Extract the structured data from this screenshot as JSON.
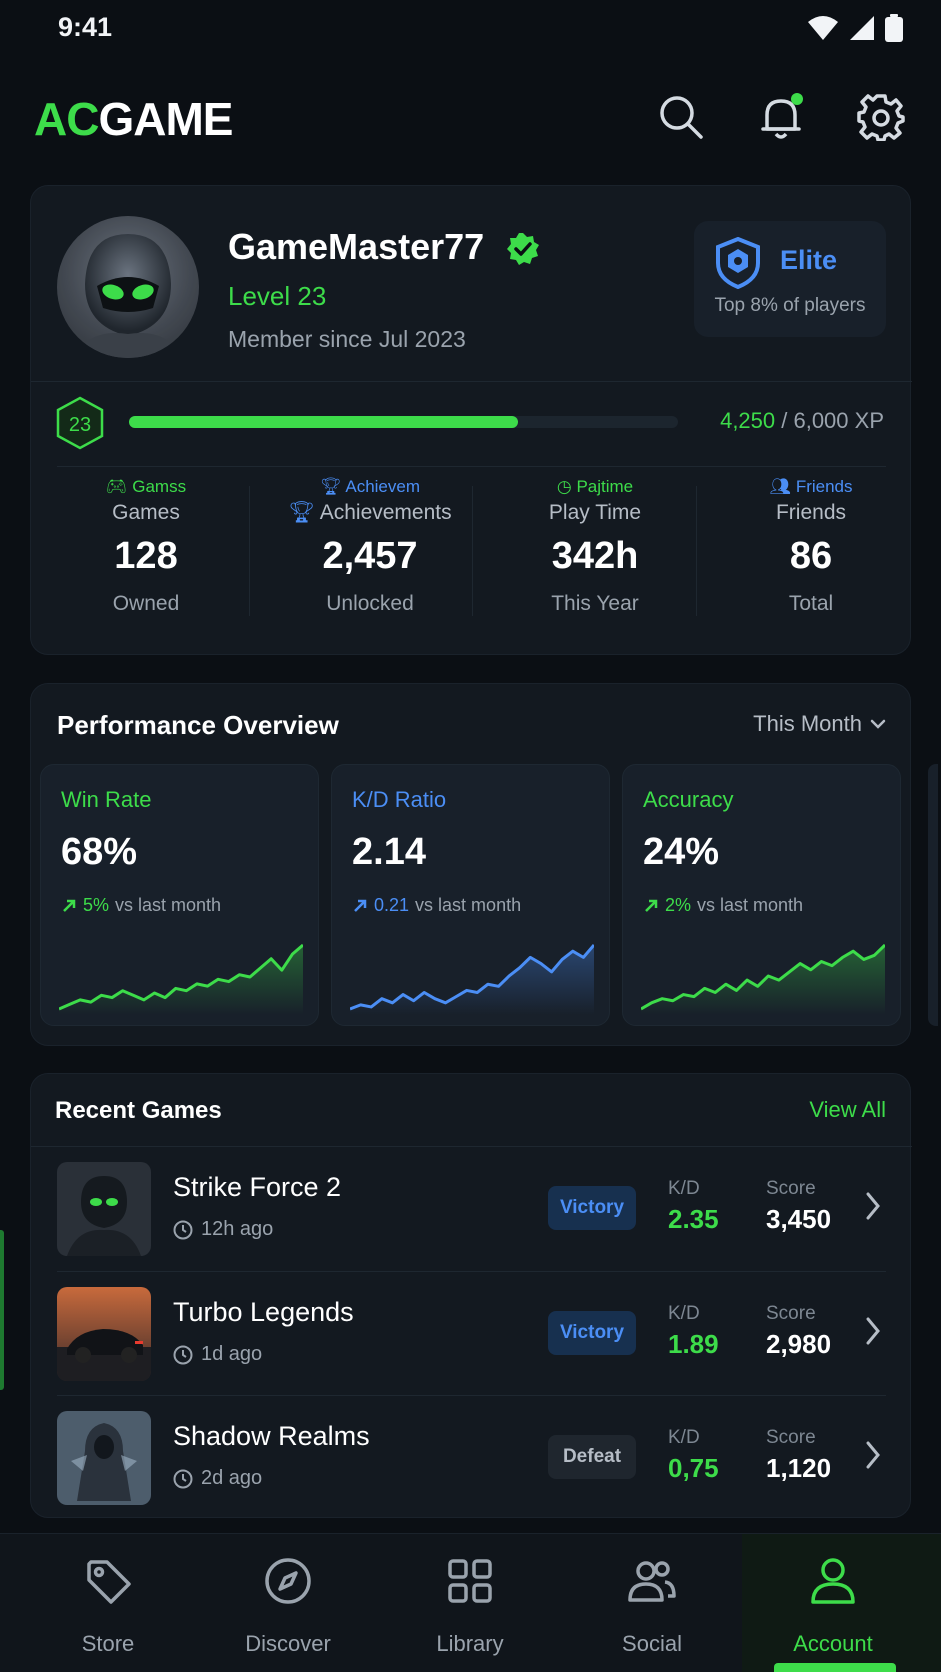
{
  "status": {
    "time": "9:41"
  },
  "header": {
    "logo_ac": "AC",
    "logo_game": "GAME",
    "icons": [
      "search-icon",
      "bell-icon",
      "gear-icon"
    ]
  },
  "profile": {
    "username": "GameMaster77",
    "level": "Level 23",
    "member_since": "Member since Jul 2023",
    "tier": "Elite",
    "tier_sub": "Top 8% of players",
    "xp_level": "23",
    "xp_current": "4,250",
    "xp_total": " / 6,000 XP",
    "xp_progress": 0.708
  },
  "stats": [
    {
      "tag": "Gamss",
      "label": "Games",
      "value": "128",
      "sub": "Owned",
      "color": "#3ddc4a"
    },
    {
      "tag": "Achievem",
      "label": "Achievements",
      "value": "2,457",
      "sub": "Unlocked",
      "color": "#4b8ef5"
    },
    {
      "tag": "Pajtime",
      "label": "Play Time",
      "value": "342h",
      "sub": "This Year",
      "color": "#3ddc4a"
    },
    {
      "tag": "Friends",
      "label": "Friends",
      "value": "86",
      "sub": "Total",
      "color": "#4b8ef5"
    }
  ],
  "performance": {
    "title": "Performance Overview",
    "filter": "This Month",
    "metrics": [
      {
        "name": "Win Rate",
        "value": "68%",
        "delta": "5%",
        "delta_text": "vs last month",
        "color": "#3ddc4a",
        "trend": [
          2,
          4,
          6,
          5,
          8,
          7,
          10,
          8,
          6,
          9,
          7,
          11,
          10,
          13,
          12,
          15,
          14,
          17,
          16,
          20,
          24,
          19,
          26,
          30
        ]
      },
      {
        "name": "K/D Ratio",
        "value": "2.14",
        "delta": "0.21",
        "delta_text": "vs last month",
        "color": "#4b8ef5",
        "trend": [
          2,
          4,
          3,
          7,
          5,
          9,
          6,
          10,
          7,
          5,
          8,
          11,
          10,
          14,
          13,
          18,
          22,
          27,
          24,
          20,
          26,
          30,
          27,
          33
        ]
      },
      {
        "name": "Accuracy",
        "value": "24%",
        "delta": "2%",
        "delta_text": "vs last month",
        "color": "#3ddc4a",
        "trend": [
          2,
          5,
          7,
          6,
          9,
          8,
          12,
          10,
          14,
          11,
          16,
          13,
          18,
          16,
          20,
          24,
          21,
          25,
          23,
          27,
          30,
          26,
          28,
          33
        ]
      }
    ]
  },
  "recent": {
    "title": "Recent Games",
    "view_all": "View All",
    "kd_label": "K/D",
    "score_label": "Score",
    "games": [
      {
        "name": "Strike Force 2",
        "time": "12h ago",
        "result": "Victory",
        "kd": "2.35",
        "score": "3,450"
      },
      {
        "name": "Turbo Legends",
        "time": "1d ago",
        "result": "Victory",
        "kd": "1.89",
        "score": "2,980"
      },
      {
        "name": "Shadow Realms",
        "time": "2d ago",
        "result": "Defeat",
        "kd": "0,75",
        "score": "1,120"
      }
    ]
  },
  "nav": [
    {
      "label": "Store",
      "icon": "tag-icon"
    },
    {
      "label": "Discover",
      "icon": "compass-icon"
    },
    {
      "label": "Library",
      "icon": "grid-icon"
    },
    {
      "label": "Social",
      "icon": "people-icon"
    },
    {
      "label": "Account",
      "icon": "user-icon",
      "active": true
    }
  ],
  "colors": {
    "accent": "#3ddc4a",
    "blue": "#4b8ef5",
    "bg": "#0b0f14"
  }
}
